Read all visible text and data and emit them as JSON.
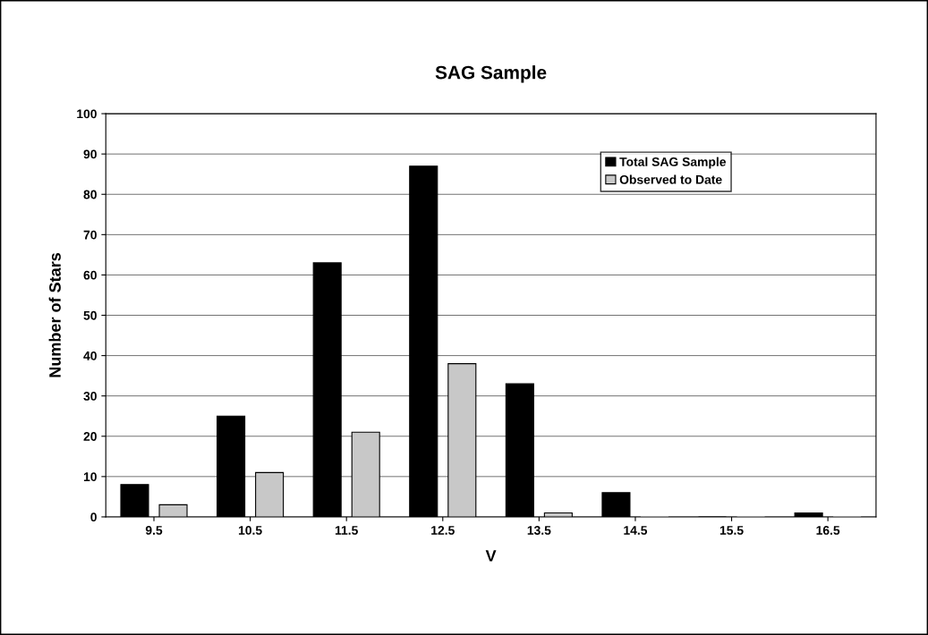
{
  "chart_data": {
    "type": "bar",
    "title": "SAG Sample",
    "xlabel": "V",
    "ylabel": "Number of Stars",
    "categories": [
      "9.5",
      "10.5",
      "11.5",
      "12.5",
      "13.5",
      "14.5",
      "15.5",
      "16.5"
    ],
    "series": [
      {
        "name": "Total SAG Sample",
        "color": "#000000",
        "values": [
          8,
          25,
          63,
          87,
          33,
          6,
          0,
          1
        ]
      },
      {
        "name": "Observed to Date",
        "color": "#c8c8c8",
        "values": [
          3,
          11,
          21,
          38,
          1,
          0,
          0,
          0
        ]
      }
    ],
    "ylim": [
      0,
      100
    ],
    "yticks": [
      0,
      10,
      20,
      30,
      40,
      50,
      60,
      70,
      80,
      90,
      100
    ],
    "grid": "y",
    "legend": "top right"
  }
}
